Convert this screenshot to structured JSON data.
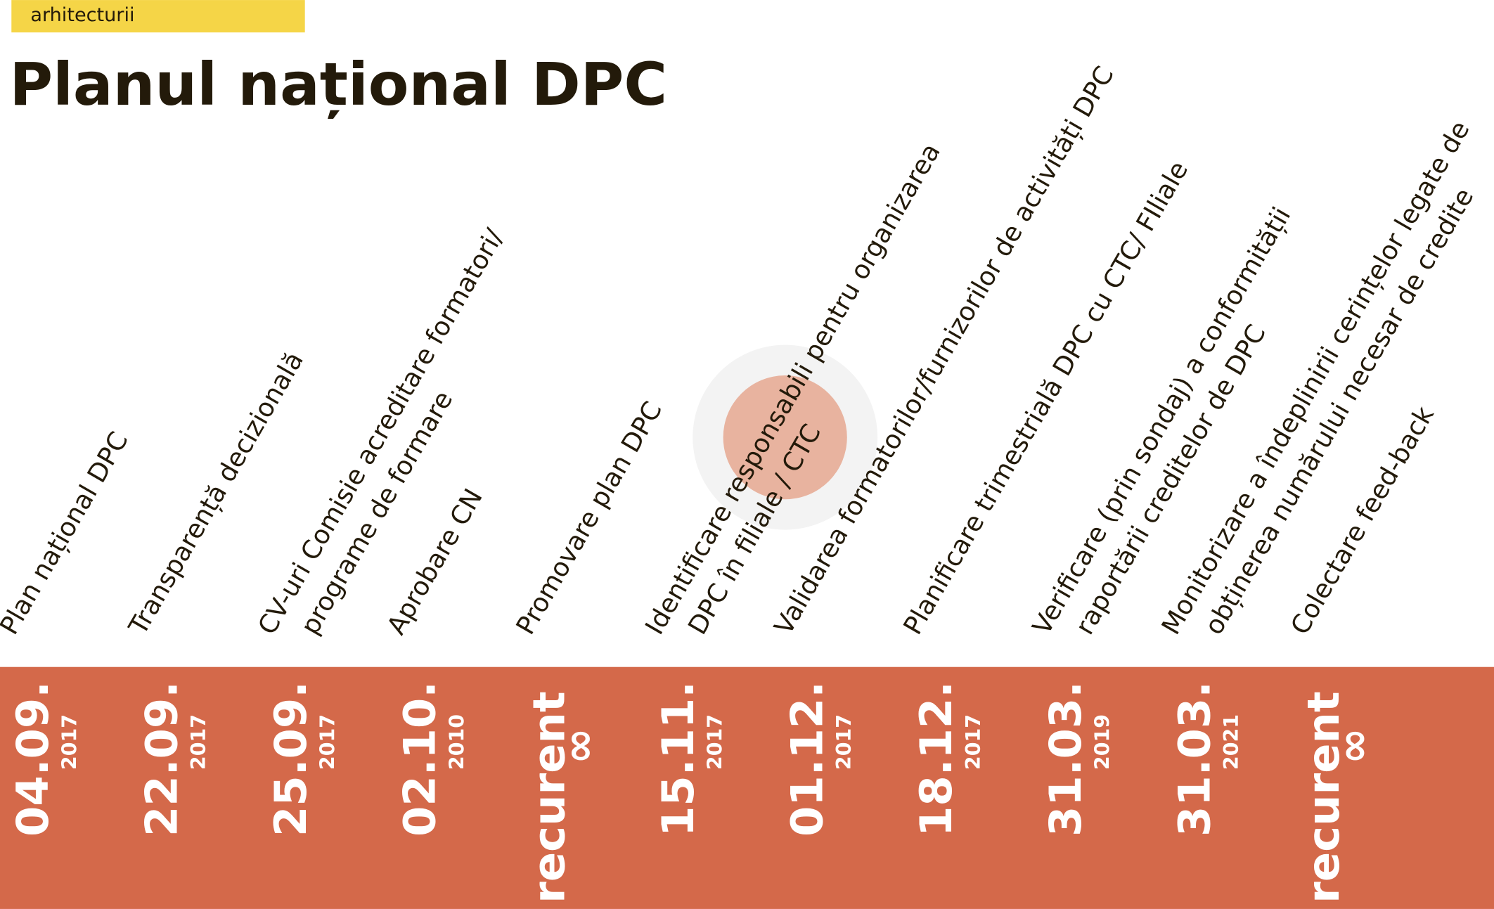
{
  "header": {
    "tag": "arhitecturii",
    "title": "Planul național DPC"
  },
  "timeline": [
    {
      "label": [
        "Plan național DPC"
      ],
      "date": "04.09.",
      "year": "2017"
    },
    {
      "label": [
        "Transparență decizională"
      ],
      "date": "22.09.",
      "year": "2017"
    },
    {
      "label": [
        "CV-uri Comisie acreditare formatori/",
        "programe de formare"
      ],
      "date": "25.09.",
      "year": "2017"
    },
    {
      "label": [
        "Aprobare CN"
      ],
      "date": "02.10.",
      "year": "2010"
    },
    {
      "label": [
        "Promovare plan DPC"
      ],
      "date": "recurent",
      "symbol": "∞"
    },
    {
      "label": [
        "Identificare responsabili pentru organizarea",
        "DPC în filiale / CTC"
      ],
      "date": "15.11.",
      "year": "2017"
    },
    {
      "label": [
        "Validarea formatorilor/furnizorilor de activități DPC"
      ],
      "date": "01.12.",
      "year": "2017"
    },
    {
      "label": [
        "Planificare trimestrială DPC cu CTC/ FIliale"
      ],
      "date": "18.12.",
      "year": "2017"
    },
    {
      "label": [
        "Verificare (prin sondaj) a conformității",
        "raportării creditelor de DPC"
      ],
      "date": "31.03.",
      "year": "2019"
    },
    {
      "label": [
        "Monitorizare a îndeplinirii cerințelor legate de",
        "obținerea numărului necesar de credite"
      ],
      "date": "31.03.",
      "year": "2021"
    },
    {
      "label": [
        "Colectare feed-back"
      ],
      "date": "recurent",
      "symbol": "∞"
    }
  ]
}
